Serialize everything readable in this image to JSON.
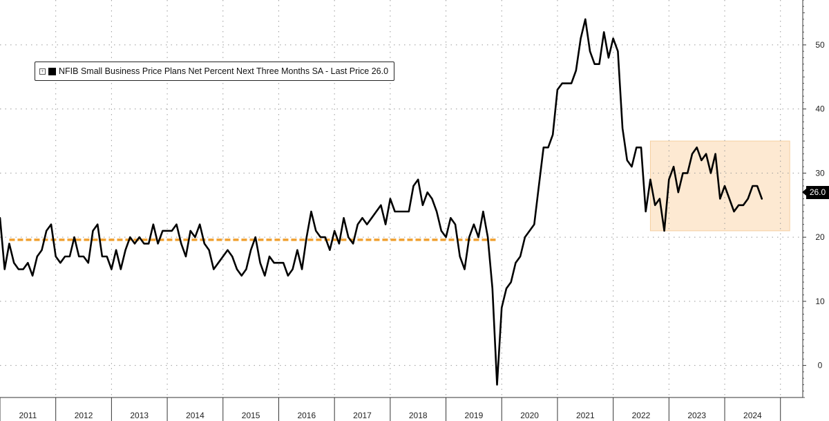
{
  "legend": {
    "toggle_icon": "plus-box-icon",
    "label": "NFIB Small Business Price Plans Net Percent Next Three Months SA - Last Price 26.0"
  },
  "last_price_tag": "26.0",
  "colors": {
    "line": "#000000",
    "reference": "#f0a030",
    "highlight": "#fde9d2",
    "grid": "#999999"
  },
  "chart_data": {
    "type": "line",
    "title": "",
    "xlabel": "",
    "ylabel": "",
    "grid": true,
    "legend_position": "top-left",
    "y_axis_position": "right",
    "ylim": [
      -5,
      57
    ],
    "xlim": [
      2011.0,
      2025.4
    ],
    "y_ticks": [
      0,
      10,
      20,
      30,
      40,
      50
    ],
    "x_tick_labels": [
      "2011",
      "2012",
      "2013",
      "2014",
      "2015",
      "2016",
      "2017",
      "2018",
      "2019",
      "2020",
      "2021",
      "2022",
      "2023",
      "2024"
    ],
    "series": [
      {
        "name": "NFIB Small Business Price Plans Net Percent Next Three Months SA",
        "start": "2011-01",
        "frequency": "monthly",
        "values": [
          23,
          15,
          19,
          16,
          15,
          15,
          16,
          14,
          17,
          18,
          21,
          22,
          17,
          16,
          17,
          17,
          20,
          17,
          17,
          16,
          21,
          22,
          17,
          17,
          15,
          18,
          15,
          18,
          20,
          19,
          20,
          19,
          19,
          22,
          19,
          21,
          21,
          21,
          22,
          19,
          17,
          21,
          20,
          22,
          19,
          18,
          15,
          16,
          17,
          18,
          17,
          15,
          14,
          15,
          18,
          20,
          16,
          14,
          17,
          16,
          16,
          16,
          14,
          15,
          18,
          15,
          20,
          24,
          21,
          20,
          20,
          18,
          21,
          19,
          23,
          20,
          19,
          22,
          23,
          22,
          23,
          24,
          25,
          22,
          26,
          24,
          24,
          24,
          24,
          28,
          29,
          25,
          27,
          26,
          24,
          21,
          20,
          23,
          22,
          17,
          15,
          20,
          22,
          20,
          24,
          20,
          12,
          -3,
          9,
          12,
          13,
          16,
          17,
          20,
          21,
          22,
          28,
          34,
          34,
          36,
          43,
          44,
          44,
          44,
          46,
          51,
          54,
          49,
          47,
          47,
          52,
          48,
          51,
          49,
          37,
          32,
          31,
          34,
          34,
          24,
          29,
          25,
          26,
          21,
          29,
          31,
          27,
          30,
          30,
          33,
          34,
          32,
          33,
          30,
          33,
          26,
          28,
          26,
          24,
          25,
          25,
          26,
          28,
          28,
          26
        ]
      }
    ],
    "reference_line": {
      "value": 19.6,
      "from": "2011-03",
      "to": "2019-12"
    },
    "highlight_region": {
      "from": "2022-09",
      "to": "2025-03",
      "y_range": [
        21,
        35
      ]
    },
    "last_value": 26.0
  }
}
